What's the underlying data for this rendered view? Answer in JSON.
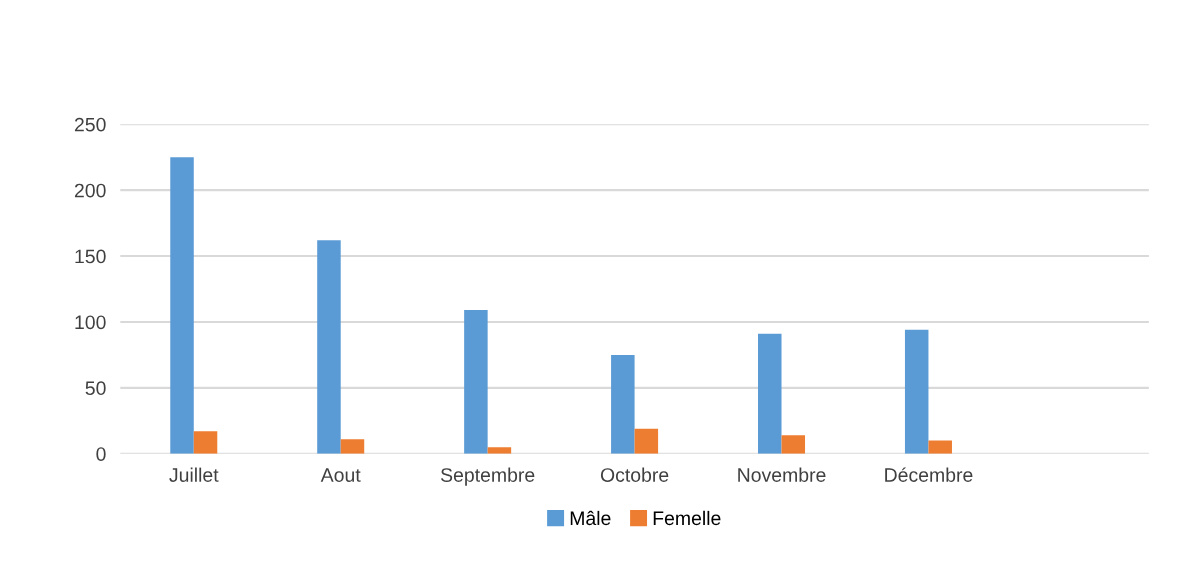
{
  "chart_data": {
    "type": "bar",
    "categories": [
      "Juillet",
      "Aout",
      "Septembre",
      "Octobre",
      "Novembre",
      "Décembre",
      null
    ],
    "series": [
      {
        "name": "Mâle",
        "color": "#5b9bd5",
        "values": [
          225,
          162,
          109,
          75,
          91,
          94,
          null
        ]
      },
      {
        "name": "Femelle",
        "color": "#ed7d31",
        "values": [
          17,
          11,
          5,
          19,
          14,
          10,
          null
        ]
      }
    ],
    "ylim": [
      0,
      250
    ],
    "yticks": [
      0,
      50,
      100,
      150,
      200,
      250
    ],
    "grid": "y",
    "legend": "bottom"
  }
}
